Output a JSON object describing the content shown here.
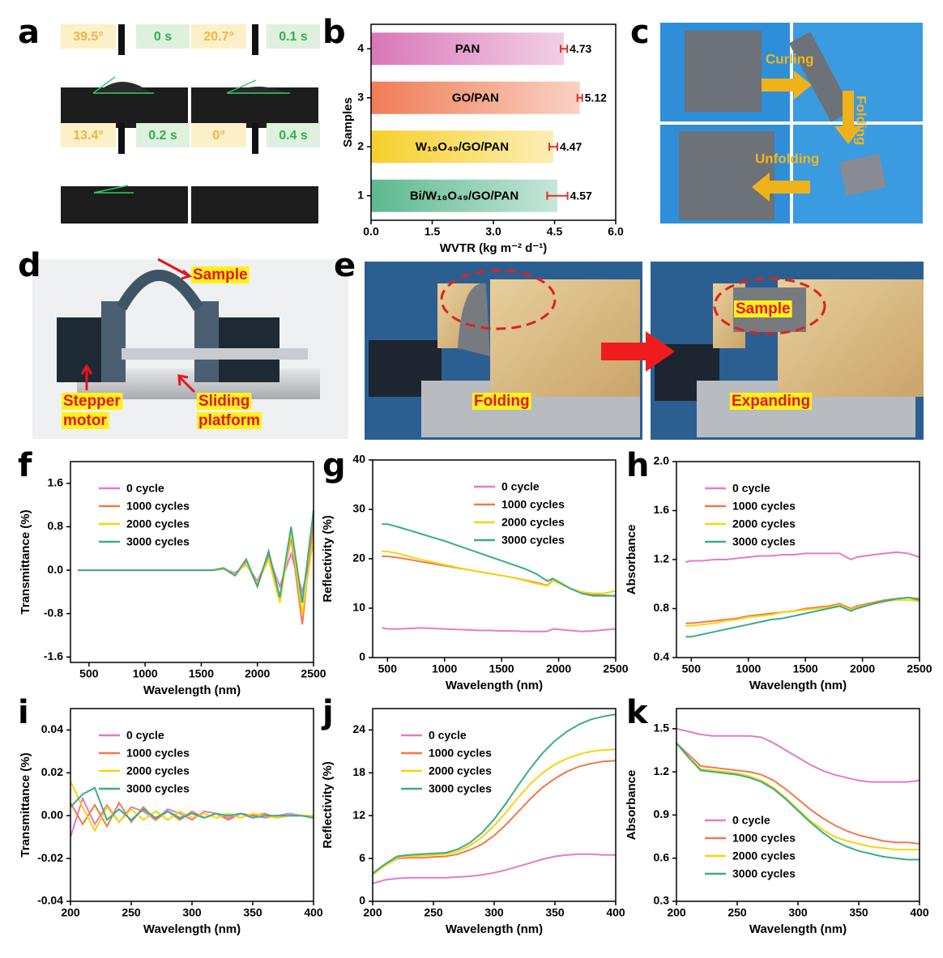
{
  "panel_labels": [
    "a",
    "b",
    "c",
    "d",
    "e",
    "f",
    "g",
    "h",
    "i",
    "j",
    "k"
  ],
  "panel_a": {
    "labels": [
      "39.5°",
      "0 s",
      "20.7°",
      "0.1 s",
      "13.4°",
      "0.2 s",
      "0°",
      "0.4 s"
    ]
  },
  "panel_c": {
    "labels": [
      "Curling",
      "Folding",
      "Unfolding"
    ]
  },
  "panel_d": {
    "labels": [
      "Sample",
      "Stepper",
      "motor",
      "Sliding",
      "platform"
    ]
  },
  "panel_e": {
    "labels": [
      "Sample",
      "Folding",
      "Expanding"
    ]
  },
  "chart_data": [
    {
      "type": "hbar",
      "xlabel": "WVTR (kg m⁻² d⁻¹)",
      "ylabel": "Samples",
      "categories": [
        "1",
        "2",
        "3",
        "4"
      ],
      "bar_labels": [
        "Bi/W₁₈O₄₉/GO/PAN",
        "W₁₈O₄₉/GO/PAN",
        "GO/PAN",
        "PAN"
      ],
      "values": [
        4.57,
        4.47,
        5.12,
        4.73
      ],
      "errors": [
        0.25,
        0.1,
        0.06,
        0.08
      ],
      "colors": [
        "#5cb890",
        "#f6cf2a",
        "#f07c55",
        "#d977b8"
      ],
      "error_color": "#e0302a",
      "xlim": [
        0,
        6.0
      ],
      "xticks": [
        {
          "value": 0,
          "label": "0.0"
        },
        1.5,
        {
          "value": 3,
          "label": "3.0"
        },
        4.5,
        {
          "value": 6,
          "label": "6.0"
        }
      ]
    },
    {
      "type": "line",
      "xlabel": "Wavelength (nm)",
      "ylabel": "Transmittance (%)",
      "legend": "upper left",
      "x": [
        400,
        500,
        600,
        700,
        800,
        900,
        1000,
        1100,
        1200,
        1300,
        1400,
        1500,
        1600,
        1700,
        1800,
        1900,
        2000,
        2100,
        2200,
        2300,
        2400,
        2500
      ],
      "xlim": [
        335,
        2500
      ],
      "xticks": [
        500,
        1000,
        1500,
        2000,
        2500
      ],
      "ylim": [
        -1.7,
        2.0
      ],
      "yticks": [
        -1.6,
        -0.8,
        {
          "value": 0,
          "label": "0.0"
        },
        0.8,
        1.6
      ],
      "series": [
        {
          "name": "0 cycle",
          "color": "#e27cc9",
          "values": [
            0,
            0,
            0,
            0,
            0,
            0,
            0,
            0,
            0,
            0,
            0,
            0,
            0,
            0.02,
            -0.05,
            0.1,
            -0.2,
            0.25,
            -0.3,
            0.3,
            -0.4,
            0.5
          ]
        },
        {
          "name": "1000 cycles",
          "color": "#f07a4a",
          "values": [
            0,
            0,
            0,
            0,
            0,
            0,
            0,
            0,
            0,
            0,
            0,
            0,
            0,
            0.03,
            -0.1,
            0.15,
            -0.3,
            0.3,
            -0.5,
            0.6,
            -1.0,
            0.9
          ]
        },
        {
          "name": "2000 cycles",
          "color": "#f5d60a",
          "values": [
            0,
            0,
            0,
            0,
            0,
            0,
            0,
            0,
            0,
            0,
            0,
            0,
            0,
            0.02,
            -0.08,
            0.12,
            -0.25,
            0.2,
            -0.6,
            0.7,
            -0.8,
            0.6
          ]
        },
        {
          "name": "3000 cycles",
          "color": "#3aad8a",
          "values": [
            0,
            0,
            0,
            0,
            0,
            0,
            0,
            0,
            0,
            0,
            0,
            0,
            0,
            0.04,
            -0.1,
            0.2,
            -0.3,
            0.35,
            -0.5,
            0.8,
            -0.6,
            1.1
          ]
        }
      ]
    },
    {
      "type": "line",
      "xlabel": "Wavelength (nm)",
      "ylabel": "Reflectivity (%)",
      "legend": "upper right",
      "x": [
        450,
        500,
        600,
        700,
        800,
        900,
        1000,
        1100,
        1200,
        1300,
        1400,
        1500,
        1600,
        1700,
        1800,
        1900,
        1950,
        2100,
        2200,
        2300,
        2400,
        2500
      ],
      "xlim": [
        370,
        2500
      ],
      "xticks": [
        500,
        1000,
        1500,
        2000,
        2500
      ],
      "ylim": [
        0,
        40
      ],
      "yticks": [
        0,
        10,
        20,
        30,
        40
      ],
      "series": [
        {
          "name": "0 cycle",
          "color": "#e27cc9",
          "values": [
            6,
            5.8,
            5.8,
            5.9,
            6,
            5.9,
            5.8,
            5.7,
            5.6,
            5.5,
            5.5,
            5.4,
            5.4,
            5.3,
            5.3,
            5.3,
            5.8,
            5.5,
            5.3,
            5.4,
            5.6,
            5.8
          ]
        },
        {
          "name": "1000 cycles",
          "color": "#f07a4a",
          "values": [
            20.5,
            20.5,
            20.2,
            19.8,
            19.4,
            19,
            18.6,
            18.2,
            17.8,
            17.4,
            17,
            16.6,
            16.2,
            15.7,
            15.2,
            14.6,
            15.8,
            14,
            13.2,
            12.8,
            12.6,
            12.5
          ]
        },
        {
          "name": "2000 cycles",
          "color": "#f5d60a",
          "values": [
            21.5,
            21.5,
            21,
            20.4,
            19.8,
            19.3,
            18.8,
            18.3,
            17.8,
            17.4,
            17,
            16.6,
            16.2,
            15.6,
            15,
            14.5,
            15.6,
            14,
            13.3,
            13,
            13,
            13.5
          ]
        },
        {
          "name": "3000 cycles",
          "color": "#3aad8a",
          "values": [
            27,
            27,
            26.4,
            25.7,
            25,
            24.3,
            23.6,
            22.8,
            22,
            21.2,
            20.4,
            19.6,
            18.8,
            18,
            17,
            15.5,
            16,
            14,
            13,
            12.5,
            12.5,
            12.5
          ]
        }
      ]
    },
    {
      "type": "line",
      "xlabel": "Wavelength (nm)",
      "ylabel": "Absorbance",
      "legend": "upper left",
      "x": [
        450,
        500,
        600,
        700,
        800,
        900,
        1000,
        1100,
        1200,
        1300,
        1400,
        1500,
        1600,
        1700,
        1800,
        1900,
        1950,
        2100,
        2200,
        2300,
        2400,
        2500
      ],
      "xlim": [
        370,
        2500
      ],
      "xticks": [
        500,
        1000,
        1500,
        2000,
        2500
      ],
      "ylim": [
        0.4,
        2.0
      ],
      "yticks": [
        0.4,
        0.8,
        1.2,
        1.6,
        {
          "value": 2,
          "label": "2.0"
        }
      ],
      "series": [
        {
          "name": "0 cycle",
          "color": "#e27cc9",
          "values": [
            1.18,
            1.19,
            1.19,
            1.2,
            1.2,
            1.21,
            1.22,
            1.23,
            1.23,
            1.24,
            1.24,
            1.25,
            1.25,
            1.25,
            1.25,
            1.2,
            1.22,
            1.24,
            1.25,
            1.26,
            1.25,
            1.22
          ]
        },
        {
          "name": "1000 cycles",
          "color": "#f07a4a",
          "values": [
            0.68,
            0.68,
            0.69,
            0.7,
            0.71,
            0.72,
            0.74,
            0.75,
            0.76,
            0.77,
            0.78,
            0.8,
            0.81,
            0.82,
            0.84,
            0.8,
            0.82,
            0.85,
            0.87,
            0.88,
            0.89,
            0.88
          ]
        },
        {
          "name": "2000 cycles",
          "color": "#f5d60a",
          "values": [
            0.66,
            0.66,
            0.67,
            0.68,
            0.7,
            0.71,
            0.73,
            0.74,
            0.75,
            0.77,
            0.78,
            0.79,
            0.8,
            0.81,
            0.83,
            0.79,
            0.81,
            0.84,
            0.86,
            0.87,
            0.87,
            0.86
          ]
        },
        {
          "name": "3000 cycles",
          "color": "#3aad8a",
          "values": [
            0.57,
            0.57,
            0.59,
            0.61,
            0.63,
            0.65,
            0.67,
            0.69,
            0.71,
            0.72,
            0.74,
            0.76,
            0.78,
            0.8,
            0.82,
            0.78,
            0.8,
            0.84,
            0.86,
            0.88,
            0.89,
            0.87
          ]
        }
      ]
    },
    {
      "type": "line",
      "xlabel": "Wavelength (nm)",
      "ylabel": "Transmittance (%)",
      "legend": "upper left",
      "x": [
        200,
        210,
        220,
        230,
        240,
        250,
        260,
        270,
        280,
        290,
        300,
        310,
        320,
        330,
        340,
        350,
        360,
        370,
        380,
        390,
        400
      ],
      "xlim": [
        200,
        400
      ],
      "xticks": [
        200,
        250,
        300,
        350,
        400
      ],
      "ylim": [
        -0.04,
        0.05
      ],
      "yticks": [
        -0.04,
        -0.02,
        {
          "value": 0,
          "label": "0.00"
        },
        0.02,
        0.04
      ],
      "series": [
        {
          "name": "0 cycle",
          "color": "#e27cc9",
          "values": [
            -0.01,
            0.008,
            -0.004,
            0.005,
            -0.003,
            0.004,
            0.002,
            -0.002,
            0.003,
            0.001,
            -0.002,
            0.002,
            0.001,
            -0.001,
            0.001,
            0,
            -0.001,
            0,
            0.001,
            0,
            0
          ]
        },
        {
          "name": "1000 cycles",
          "color": "#f07a4a",
          "values": [
            0.006,
            -0.004,
            0.005,
            -0.005,
            0.006,
            -0.003,
            0.004,
            -0.002,
            0.002,
            -0.002,
            0.002,
            -0.001,
            0.001,
            -0.002,
            0.001,
            0,
            0.001,
            -0.001,
            0,
            0,
            -0.001
          ]
        },
        {
          "name": "2000 cycles",
          "color": "#f5d60a",
          "values": [
            0.016,
            0.004,
            -0.007,
            0.004,
            -0.003,
            0.003,
            -0.002,
            0.002,
            -0.002,
            0.002,
            -0.001,
            0.001,
            -0.001,
            0.001,
            -0.001,
            0.001,
            0,
            -0.001,
            0,
            0,
            0
          ]
        },
        {
          "name": "3000 cycles",
          "color": "#3aad8a",
          "values": [
            0.004,
            0.01,
            0.013,
            -0.002,
            0.003,
            -0.002,
            0.003,
            -0.001,
            0.002,
            -0.001,
            0.001,
            -0.001,
            0.001,
            0,
            0.001,
            -0.001,
            0,
            0,
            0,
            0,
            -0.001
          ]
        }
      ]
    },
    {
      "type": "line",
      "xlabel": "Wavelength (nm)",
      "ylabel": "Reflectivity (%)",
      "legend": "upper left",
      "x": [
        200,
        210,
        220,
        230,
        240,
        250,
        260,
        270,
        280,
        290,
        300,
        310,
        320,
        330,
        340,
        350,
        360,
        370,
        380,
        390,
        400
      ],
      "xlim": [
        200,
        400
      ],
      "xticks": [
        200,
        250,
        300,
        350,
        400
      ],
      "ylim": [
        0,
        27
      ],
      "yticks": [
        0,
        6,
        12,
        18,
        24
      ],
      "series": [
        {
          "name": "0 cycle",
          "color": "#e27cc9",
          "values": [
            2.5,
            3,
            3.2,
            3.3,
            3.3,
            3.3,
            3.3,
            3.4,
            3.5,
            3.7,
            4,
            4.4,
            4.9,
            5.4,
            5.9,
            6.3,
            6.5,
            6.6,
            6.6,
            6.5,
            6.5
          ]
        },
        {
          "name": "1000 cycles",
          "color": "#f07a4a",
          "values": [
            3.8,
            5,
            6,
            6.1,
            6.1,
            6.2,
            6.3,
            6.6,
            7.2,
            8,
            9.2,
            10.8,
            12.6,
            14.4,
            16,
            17.2,
            18.2,
            18.9,
            19.3,
            19.6,
            19.7
          ]
        },
        {
          "name": "2000 cycles",
          "color": "#f5d60a",
          "values": [
            3.7,
            5,
            6.1,
            6.3,
            6.4,
            6.5,
            6.6,
            7,
            7.8,
            9,
            10.6,
            12.5,
            14.6,
            16.5,
            18,
            19.2,
            20,
            20.6,
            21,
            21.2,
            21.3
          ]
        },
        {
          "name": "3000 cycles",
          "color": "#3aad8a",
          "values": [
            3.9,
            5.2,
            6.3,
            6.5,
            6.6,
            6.7,
            6.8,
            7.3,
            8.2,
            9.6,
            11.5,
            13.8,
            16.3,
            18.7,
            20.8,
            22.5,
            23.8,
            24.8,
            25.5,
            25.9,
            26.2
          ]
        }
      ]
    },
    {
      "type": "line",
      "xlabel": "Wavelength (nm)",
      "ylabel": "Absorbance",
      "legend": "lower left",
      "x": [
        200,
        210,
        220,
        230,
        240,
        250,
        260,
        270,
        280,
        290,
        300,
        310,
        320,
        330,
        340,
        350,
        360,
        370,
        380,
        390,
        400
      ],
      "xlim": [
        200,
        400
      ],
      "xticks": [
        200,
        250,
        300,
        350,
        400
      ],
      "ylim": [
        0.3,
        1.64
      ],
      "yticks": [
        0.3,
        0.6,
        0.9,
        1.2,
        1.5
      ],
      "series": [
        {
          "name": "0 cycle",
          "color": "#e27cc9",
          "values": [
            1.5,
            1.48,
            1.46,
            1.45,
            1.45,
            1.45,
            1.45,
            1.44,
            1.4,
            1.35,
            1.3,
            1.25,
            1.21,
            1.18,
            1.16,
            1.14,
            1.13,
            1.13,
            1.13,
            1.13,
            1.14
          ]
        },
        {
          "name": "1000 cycles",
          "color": "#f07a4a",
          "values": [
            1.4,
            1.32,
            1.24,
            1.23,
            1.22,
            1.21,
            1.2,
            1.18,
            1.14,
            1.08,
            1.01,
            0.94,
            0.88,
            0.83,
            0.79,
            0.76,
            0.74,
            0.72,
            0.71,
            0.71,
            0.7
          ]
        },
        {
          "name": "2000 cycles",
          "color": "#f5d60a",
          "values": [
            1.4,
            1.3,
            1.22,
            1.21,
            1.2,
            1.19,
            1.17,
            1.14,
            1.09,
            1.02,
            0.94,
            0.86,
            0.8,
            0.75,
            0.72,
            0.7,
            0.68,
            0.67,
            0.66,
            0.66,
            0.66
          ]
        },
        {
          "name": "3000 cycles",
          "color": "#3aad8a",
          "values": [
            1.4,
            1.3,
            1.21,
            1.2,
            1.19,
            1.18,
            1.16,
            1.13,
            1.08,
            1.01,
            0.93,
            0.85,
            0.78,
            0.72,
            0.68,
            0.65,
            0.63,
            0.61,
            0.6,
            0.59,
            0.59
          ]
        }
      ]
    }
  ]
}
